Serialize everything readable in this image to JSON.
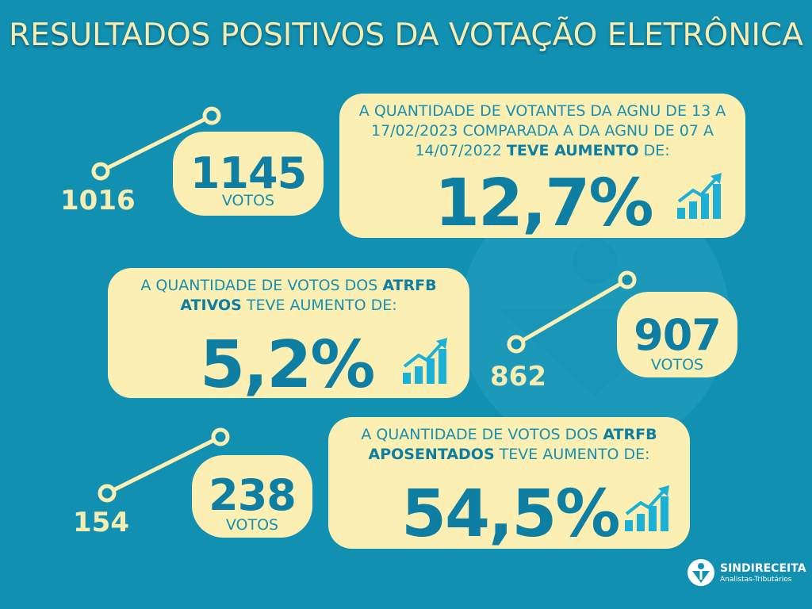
{
  "title": "RESULTADOS POSITIVOS DA VOTAÇÃO ELETRÔNICA",
  "colors": {
    "background": "#1190b2",
    "card": "#fcefb3",
    "accent_dark": "#0e7ea3",
    "accent_light": "#1590b2",
    "title": "#f7ecb2"
  },
  "cards": [
    {
      "text_before": "A QUANTIDADE DE VOTANTES DA AGNU DE 13 A 17/02/2023 COMPARADA A DA AGNU DE 07 A 14/07/2022 ",
      "text_bold": "TEVE AUMENTO",
      "text_after": " DE:",
      "percent": "12,7%",
      "icon": "growth-chart-icon"
    },
    {
      "text_before": "A QUANTIDADE DE VOTOS DOS ",
      "text_bold": "ATRFB ATIVOS",
      "text_after": " TEVE AUMENTO DE:",
      "percent": "5,2%",
      "icon": "growth-chart-icon"
    },
    {
      "text_before": "A QUANTIDADE DE VOTOS DOS ",
      "text_bold": "ATRFB APOSENTADOS",
      "text_after": " TEVE AUMENTO DE:",
      "percent": "54,5%",
      "icon": "growth-chart-icon"
    }
  ],
  "comparisons": [
    {
      "before": "1016",
      "after": "1145",
      "unit": "VOTOS"
    },
    {
      "before": "862",
      "after": "907",
      "unit": "VOTOS"
    },
    {
      "before": "154",
      "after": "238",
      "unit": "VOTOS"
    }
  ],
  "logo": {
    "name": "SINDIRECEITA",
    "subtitle": "Analistas-Tributários"
  }
}
